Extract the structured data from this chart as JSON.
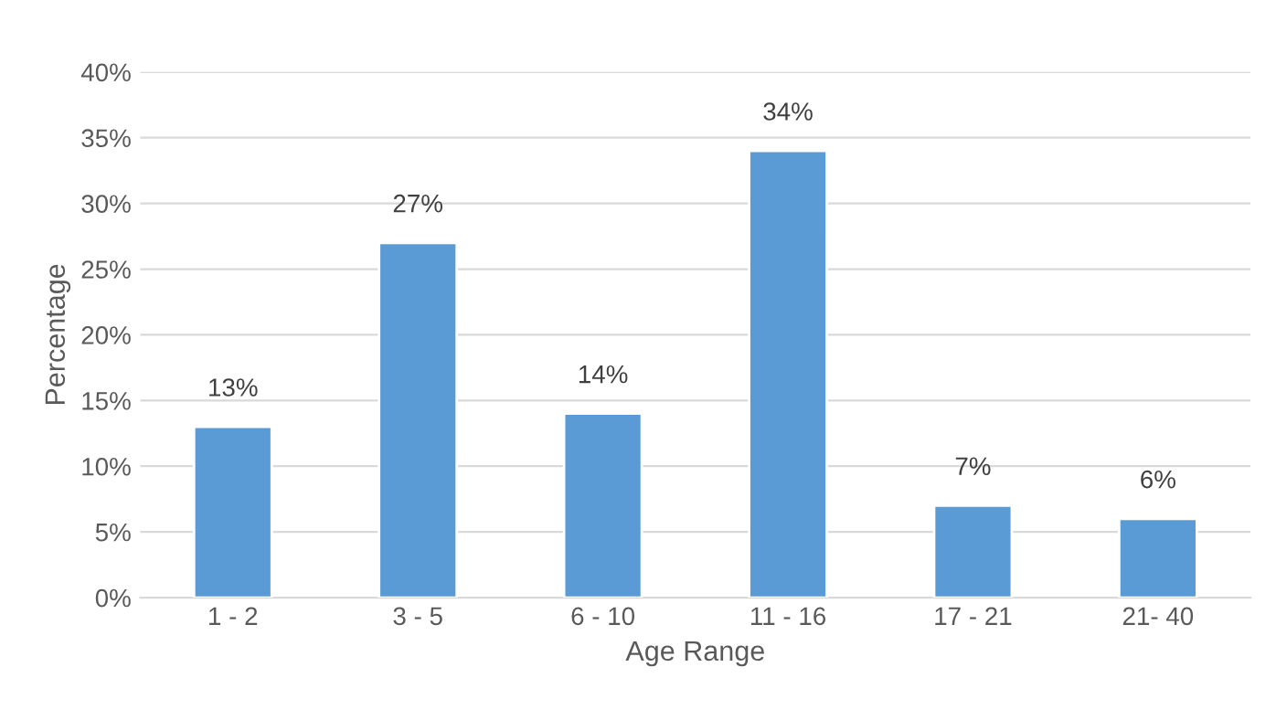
{
  "chart_data": {
    "type": "bar",
    "xlabel": "Age Range",
    "ylabel": "Percentage",
    "categories": [
      "1 - 2",
      "3 - 5",
      "6 - 10",
      "11 - 16",
      "17 - 21",
      "21- 40"
    ],
    "values": [
      13,
      27,
      14,
      34,
      7,
      6
    ],
    "value_labels": [
      "13%",
      "27%",
      "14%",
      "34%",
      "7%",
      "6%"
    ],
    "color": "#5b9bd5",
    "ylim": [
      0,
      40
    ],
    "yticks": [
      {
        "value": 0,
        "label": "0%"
      },
      {
        "value": 5,
        "label": "5%"
      },
      {
        "value": 10,
        "label": "10%"
      },
      {
        "value": 15,
        "label": "15%"
      },
      {
        "value": 20,
        "label": "20%"
      },
      {
        "value": 25,
        "label": "25%"
      },
      {
        "value": 30,
        "label": "30%"
      },
      {
        "value": 35,
        "label": "35%"
      },
      {
        "value": 40,
        "label": "40%"
      }
    ],
    "grid": "y"
  }
}
